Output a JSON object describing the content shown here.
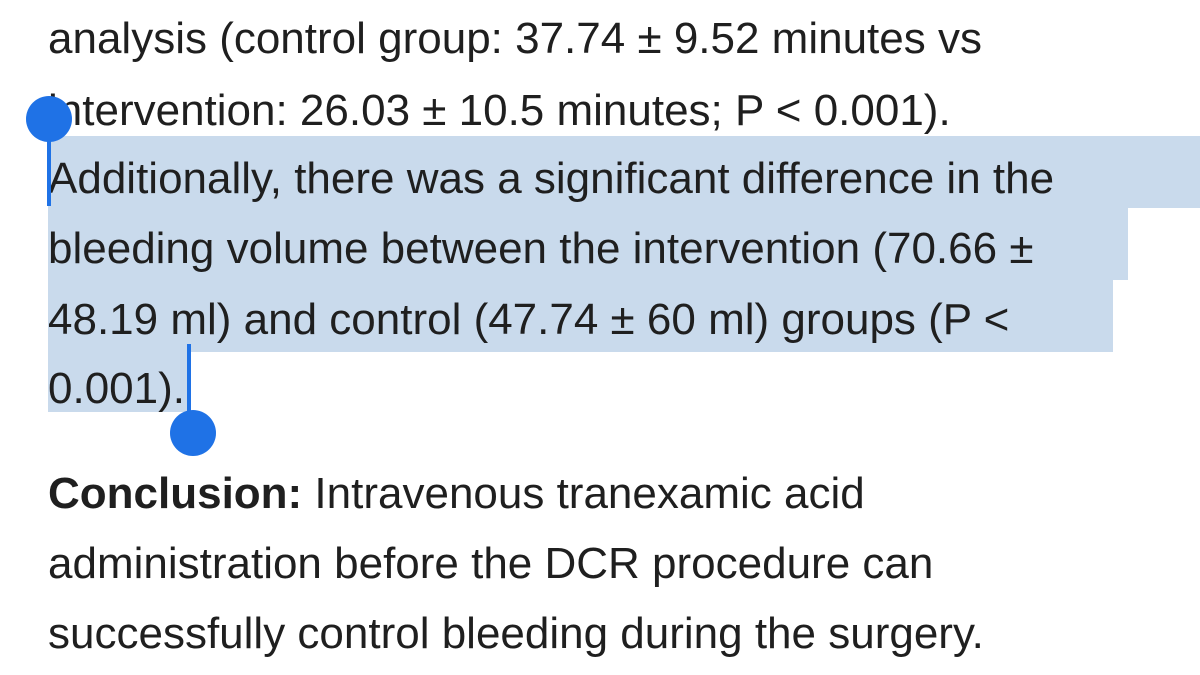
{
  "abstract": {
    "lines": [
      "analysis (control group: 37.74 ± 9.52 minutes vs",
      "intervention: 26.03 ± 10.5 minutes; P < 0.001).",
      "Additionally, there was a significant difference in the",
      "bleeding volume between the intervention (70.66 ±",
      "48.19 ml) and control (47.74 ± 60 ml) groups (P <",
      "0.001)."
    ]
  },
  "conclusion": {
    "heading": "Conclusion:",
    "lines": [
      " Intravenous tranexamic acid",
      "administration before the DCR procedure can",
      "successfully control bleeding during the surgery."
    ]
  },
  "colors": {
    "selection": "#c9daec",
    "handle": "#1f72e6",
    "text": "#1f1f1f"
  }
}
